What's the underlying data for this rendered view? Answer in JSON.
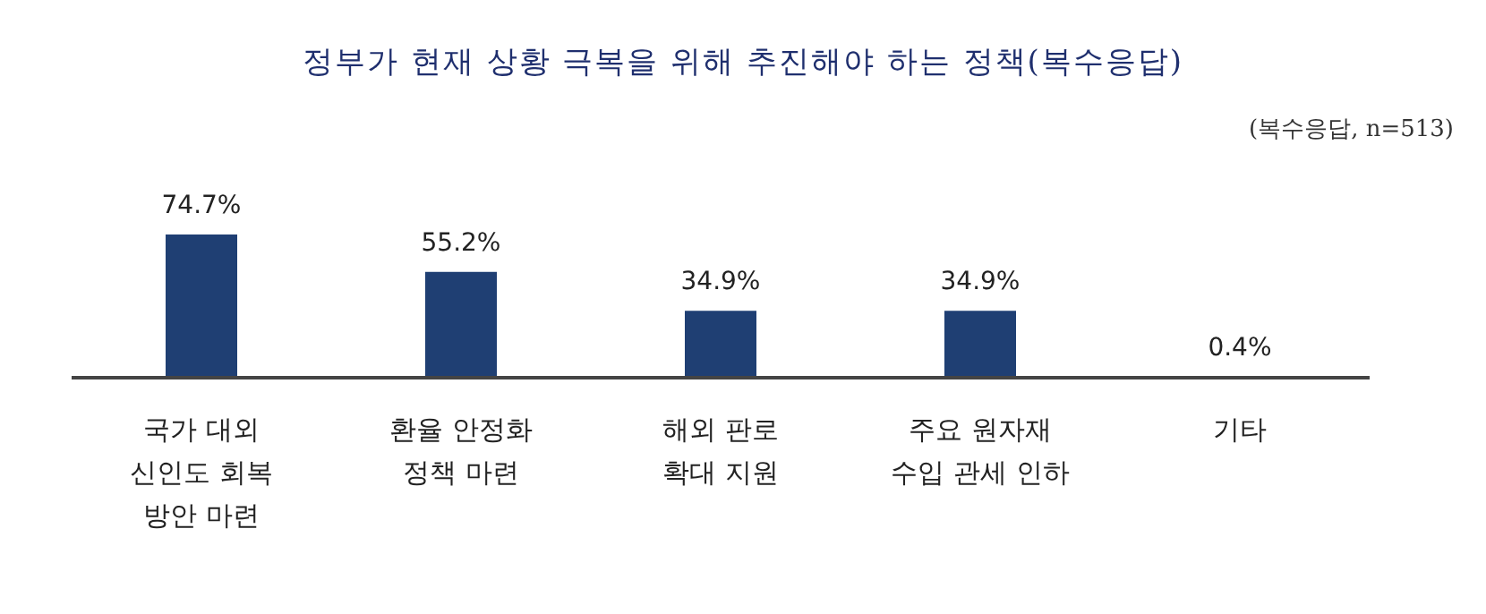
{
  "chart_data": {
    "type": "bar",
    "title": "정부가 현재 상황 극복을 위해 추진해야 하는 정책(복수응답)",
    "annotations": [
      "(복수응답, n=513)"
    ],
    "categories": [
      "국가 대외 신인도 회복 방안 마련",
      "환율 안정화 정책 마련",
      "해외 판로 확대 지원",
      "주요 원자재 수입 관세 인하",
      "기타"
    ],
    "values": [
      74.7,
      55.2,
      34.9,
      34.9,
      0.4
    ],
    "color": "#1f3f73",
    "value_labels": [
      "74.7%",
      "55.2%",
      "34.9%",
      "34.9%",
      "0.4%"
    ]
  }
}
